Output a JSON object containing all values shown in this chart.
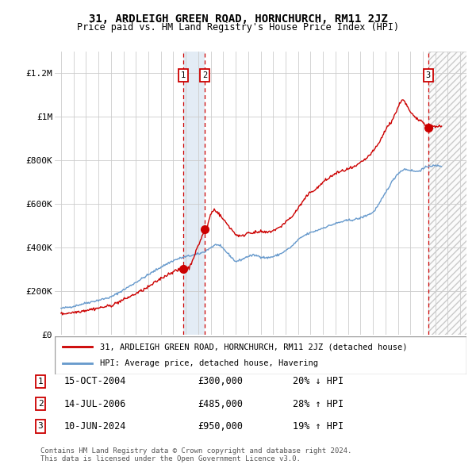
{
  "title": "31, ARDLEIGH GREEN ROAD, HORNCHURCH, RM11 2JZ",
  "subtitle": "Price paid vs. HM Land Registry's House Price Index (HPI)",
  "legend_line1": "31, ARDLEIGH GREEN ROAD, HORNCHURCH, RM11 2JZ (detached house)",
  "legend_line2": "HPI: Average price, detached house, Havering",
  "transactions": [
    {
      "id": 1,
      "date": "15-OCT-2004",
      "price": 300000,
      "change": "20% ↓ HPI",
      "x": 2004.79
    },
    {
      "id": 2,
      "date": "14-JUL-2006",
      "price": 485000,
      "change": "28% ↑ HPI",
      "x": 2006.54
    },
    {
      "id": 3,
      "date": "10-JUN-2024",
      "price": 950000,
      "change": "19% ↑ HPI",
      "x": 2024.44
    }
  ],
  "red_color": "#cc0000",
  "blue_color": "#6699cc",
  "background_color": "#ffffff",
  "grid_color": "#cccccc",
  "ylim": [
    0,
    1300000
  ],
  "xlim": [
    1994.5,
    2027.5
  ],
  "yticks": [
    0,
    200000,
    400000,
    600000,
    800000,
    1000000,
    1200000
  ],
  "ytick_labels": [
    "£0",
    "£200K",
    "£400K",
    "£600K",
    "£800K",
    "£1M",
    "£1.2M"
  ],
  "xticks": [
    1995,
    1996,
    1997,
    1998,
    1999,
    2000,
    2001,
    2002,
    2003,
    2004,
    2005,
    2006,
    2007,
    2008,
    2009,
    2010,
    2011,
    2012,
    2013,
    2014,
    2015,
    2016,
    2017,
    2018,
    2019,
    2020,
    2021,
    2022,
    2023,
    2024,
    2025,
    2026,
    2027
  ],
  "footer": "Contains HM Land Registry data © Crown copyright and database right 2024.\nThis data is licensed under the Open Government Licence v3.0.",
  "hpi_base_points": [
    [
      1995.0,
      120000
    ],
    [
      1996.0,
      130000
    ],
    [
      1997.0,
      145000
    ],
    [
      1998.0,
      158000
    ],
    [
      1999.0,
      172000
    ],
    [
      2000.0,
      205000
    ],
    [
      2001.0,
      240000
    ],
    [
      2002.0,
      275000
    ],
    [
      2003.0,
      310000
    ],
    [
      2004.0,
      340000
    ],
    [
      2004.5,
      350000
    ],
    [
      2005.0,
      358000
    ],
    [
      2006.0,
      370000
    ],
    [
      2006.5,
      380000
    ],
    [
      2007.0,
      400000
    ],
    [
      2007.5,
      415000
    ],
    [
      2008.0,
      395000
    ],
    [
      2008.5,
      365000
    ],
    [
      2009.0,
      335000
    ],
    [
      2009.5,
      345000
    ],
    [
      2010.0,
      360000
    ],
    [
      2010.5,
      365000
    ],
    [
      2011.0,
      358000
    ],
    [
      2011.5,
      352000
    ],
    [
      2012.0,
      358000
    ],
    [
      2012.5,
      368000
    ],
    [
      2013.0,
      385000
    ],
    [
      2013.5,
      405000
    ],
    [
      2014.0,
      435000
    ],
    [
      2014.5,
      455000
    ],
    [
      2015.0,
      468000
    ],
    [
      2015.5,
      478000
    ],
    [
      2016.0,
      490000
    ],
    [
      2016.5,
      500000
    ],
    [
      2017.0,
      510000
    ],
    [
      2017.5,
      518000
    ],
    [
      2018.0,
      525000
    ],
    [
      2018.5,
      528000
    ],
    [
      2019.0,
      535000
    ],
    [
      2019.5,
      548000
    ],
    [
      2020.0,
      560000
    ],
    [
      2020.5,
      600000
    ],
    [
      2021.0,
      650000
    ],
    [
      2021.5,
      700000
    ],
    [
      2022.0,
      740000
    ],
    [
      2022.5,
      760000
    ],
    [
      2023.0,
      755000
    ],
    [
      2023.5,
      748000
    ],
    [
      2024.0,
      760000
    ],
    [
      2024.5,
      775000
    ],
    [
      2025.0,
      775000
    ],
    [
      2025.5,
      775000
    ]
  ],
  "red_base_points": [
    [
      1995.0,
      95000
    ],
    [
      1996.0,
      102000
    ],
    [
      1997.0,
      112000
    ],
    [
      1998.0,
      122000
    ],
    [
      1999.0,
      133000
    ],
    [
      2000.0,
      160000
    ],
    [
      2001.0,
      188000
    ],
    [
      2002.0,
      218000
    ],
    [
      2003.0,
      258000
    ],
    [
      2004.0,
      290000
    ],
    [
      2004.79,
      300000
    ],
    [
      2004.9,
      300000
    ],
    [
      2005.0,
      303000
    ],
    [
      2005.3,
      308000
    ],
    [
      2006.54,
      485000
    ],
    [
      2006.7,
      490000
    ],
    [
      2007.0,
      555000
    ],
    [
      2007.3,
      575000
    ],
    [
      2007.5,
      565000
    ],
    [
      2008.0,
      530000
    ],
    [
      2008.5,
      495000
    ],
    [
      2009.0,
      460000
    ],
    [
      2009.5,
      450000
    ],
    [
      2010.0,
      470000
    ],
    [
      2010.5,
      468000
    ],
    [
      2011.0,
      472000
    ],
    [
      2011.5,
      468000
    ],
    [
      2012.0,
      478000
    ],
    [
      2012.5,
      490000
    ],
    [
      2013.0,
      518000
    ],
    [
      2013.5,
      540000
    ],
    [
      2014.0,
      580000
    ],
    [
      2014.5,
      620000
    ],
    [
      2015.0,
      655000
    ],
    [
      2015.5,
      670000
    ],
    [
      2016.0,
      700000
    ],
    [
      2016.5,
      720000
    ],
    [
      2017.0,
      740000
    ],
    [
      2017.5,
      750000
    ],
    [
      2018.0,
      760000
    ],
    [
      2018.5,
      768000
    ],
    [
      2019.0,
      788000
    ],
    [
      2019.5,
      810000
    ],
    [
      2020.0,
      840000
    ],
    [
      2020.5,
      880000
    ],
    [
      2021.0,
      940000
    ],
    [
      2021.5,
      980000
    ],
    [
      2022.0,
      1040000
    ],
    [
      2022.3,
      1080000
    ],
    [
      2022.5,
      1075000
    ],
    [
      2023.0,
      1020000
    ],
    [
      2023.5,
      990000
    ],
    [
      2024.0,
      980000
    ],
    [
      2024.44,
      950000
    ],
    [
      2024.6,
      955000
    ],
    [
      2025.0,
      958000
    ],
    [
      2025.5,
      955000
    ]
  ]
}
